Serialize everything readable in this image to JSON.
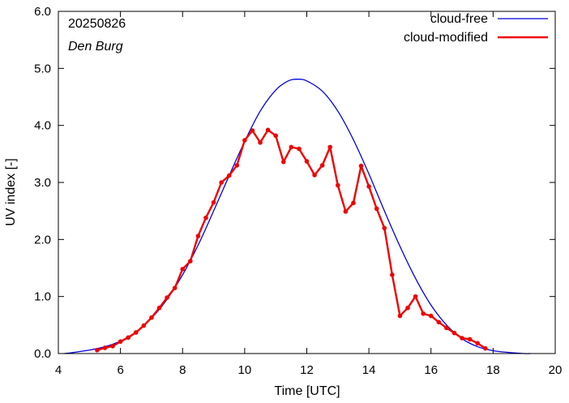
{
  "chart_data": {
    "type": "line",
    "xlabel": "Time  [UTC]",
    "ylabel": "UV index  [-]",
    "xlim": [
      4,
      20
    ],
    "ylim": [
      0,
      6
    ],
    "x_ticks": [
      4,
      6,
      8,
      10,
      12,
      14,
      16,
      18,
      20
    ],
    "x_tick_labels": [
      "4",
      "6",
      "8",
      "10",
      "12",
      "14",
      "16",
      "18",
      "20"
    ],
    "y_ticks": [
      0,
      1,
      2,
      3,
      4,
      5,
      6
    ],
    "y_tick_labels": [
      "0.0",
      "1.0",
      "2.0",
      "3.0",
      "4.0",
      "5.0",
      "6.0"
    ],
    "grid": false,
    "legend_position": "top-right",
    "annotations": {
      "date": "20250826",
      "station": "Den Burg"
    },
    "series": [
      {
        "name": "cloud-free",
        "color": "#0000dd",
        "style": "line",
        "x": [
          4.2,
          4.5,
          5.0,
          5.5,
          6.0,
          6.5,
          7.0,
          7.5,
          8.0,
          8.5,
          9.0,
          9.5,
          10.0,
          10.5,
          11.0,
          11.4,
          11.7,
          12.0,
          12.5,
          13.0,
          13.5,
          14.0,
          14.5,
          15.0,
          15.5,
          16.0,
          16.5,
          17.0,
          17.5,
          18.0,
          18.5,
          19.0,
          19.2
        ],
        "y": [
          0.0,
          0.02,
          0.06,
          0.12,
          0.22,
          0.38,
          0.62,
          0.95,
          1.38,
          1.9,
          2.5,
          3.12,
          3.72,
          4.25,
          4.62,
          4.78,
          4.81,
          4.78,
          4.6,
          4.25,
          3.75,
          3.15,
          2.5,
          1.88,
          1.32,
          0.85,
          0.5,
          0.26,
          0.12,
          0.05,
          0.02,
          0.0,
          0.0
        ]
      },
      {
        "name": "cloud-modified",
        "color": "#ee0000",
        "style": "line-points",
        "x": [
          5.25,
          5.5,
          5.75,
          6.0,
          6.25,
          6.5,
          6.75,
          7.0,
          7.25,
          7.5,
          7.75,
          8.0,
          8.25,
          8.5,
          8.75,
          9.0,
          9.25,
          9.5,
          9.75,
          10.0,
          10.25,
          10.5,
          10.75,
          11.0,
          11.25,
          11.5,
          11.75,
          12.0,
          12.25,
          12.5,
          12.75,
          13.0,
          13.25,
          13.5,
          13.75,
          14.0,
          14.25,
          14.5,
          14.75,
          15.0,
          15.25,
          15.5,
          15.75,
          16.0,
          16.25,
          16.5,
          16.75,
          17.0,
          17.25,
          17.5,
          17.75
        ],
        "y": [
          0.06,
          0.1,
          0.13,
          0.21,
          0.28,
          0.37,
          0.49,
          0.63,
          0.8,
          0.98,
          1.15,
          1.48,
          1.62,
          2.06,
          2.38,
          2.65,
          3.0,
          3.12,
          3.3,
          3.74,
          3.91,
          3.7,
          3.92,
          3.82,
          3.36,
          3.62,
          3.59,
          3.37,
          3.13,
          3.3,
          3.62,
          2.95,
          2.49,
          2.64,
          3.29,
          2.93,
          2.54,
          2.2,
          1.38,
          0.66,
          0.8,
          1.0,
          0.7,
          0.66,
          0.55,
          0.45,
          0.36,
          0.27,
          0.25,
          0.18,
          0.09
        ]
      }
    ]
  }
}
